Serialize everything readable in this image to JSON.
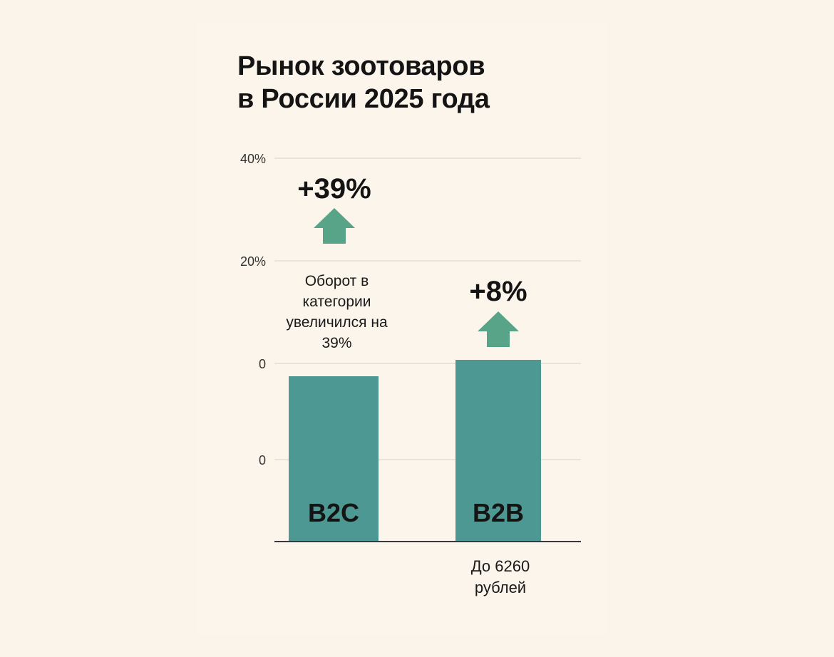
{
  "title_line1": "Рынок зоотоваров",
  "title_line2": "в России 2025 года",
  "colors": {
    "background": "#fbf4ea",
    "bar": "#4d9892",
    "arrow": "#58a488",
    "grid": "#e4ddd2",
    "axis": "#3a3a3a"
  },
  "chart_data": {
    "type": "bar",
    "categories": [
      "B2C",
      "B2B"
    ],
    "values": [
      39,
      8
    ],
    "value_labels": [
      "+39%",
      "+8%"
    ],
    "y_tick_labels": [
      "40%",
      "20%",
      "0",
      "0"
    ],
    "grid": true,
    "annotations": {
      "b2c": "Оборот в категории увеличился на 39%",
      "b2b": "До 6260 рублей"
    }
  },
  "notes": {
    "b2c": "Оборот в категории увеличился на 39%",
    "b2b": "До 6260 рублей"
  }
}
